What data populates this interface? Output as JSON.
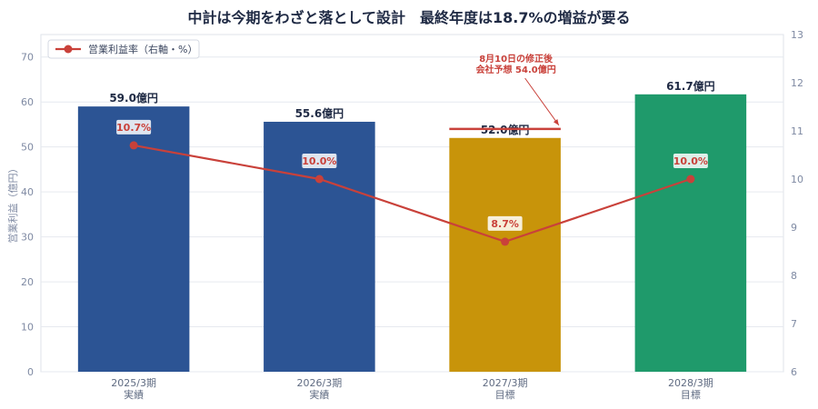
{
  "chart_data": {
    "type": "bar",
    "title": "中計は今期をわざと落として設計　最終年度は18.7%の増益が要る",
    "ylabel": "営業利益（億円）",
    "ylim": [
      0,
      75
    ],
    "y2lim": [
      6,
      13
    ],
    "yticks": [
      0,
      10,
      20,
      30,
      40,
      50,
      60,
      70
    ],
    "y2ticks": [
      6,
      7,
      8,
      9,
      10,
      11,
      12,
      13
    ],
    "categories": [
      [
        "2025/3期",
        "実績"
      ],
      [
        "2026/3期",
        "実績"
      ],
      [
        "2027/3期",
        "目標"
      ],
      [
        "2028/3期",
        "目標"
      ]
    ],
    "values": [
      59.0,
      55.6,
      52.0,
      61.7
    ],
    "bar_labels": [
      "59.0億円",
      "55.6億円",
      "52.0億円",
      "61.7億円"
    ],
    "bar_colors": [
      "#2c5494",
      "#2c5494",
      "#c8940a",
      "#1f9a6b"
    ],
    "line_series": {
      "name": "営業利益率（右軸・%）",
      "values": [
        10.7,
        10.0,
        8.7,
        10.0
      ],
      "labels": [
        "10.7%",
        "10.0%",
        "8.7%",
        "10.0%"
      ],
      "color": "#c9413a"
    },
    "annotation": {
      "lines": [
        "8月10日の修正後",
        "会社予想 54.0億円"
      ],
      "value": 54.0,
      "category_index": 2,
      "color": "#c9413a"
    },
    "legend_position": "top-left",
    "grid": true
  }
}
